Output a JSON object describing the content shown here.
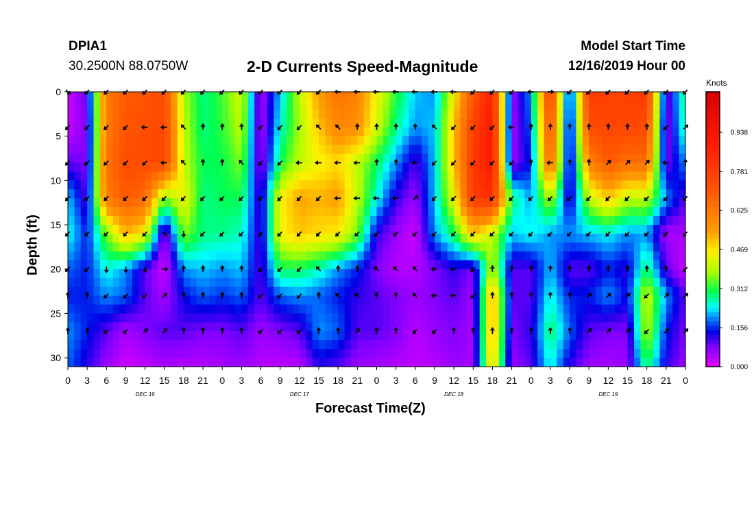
{
  "header": {
    "station": "DPIA1",
    "coords": "30.2500N 88.0750W",
    "title": "2-D Currents Speed-Magnitude",
    "start_label": "Model Start Time",
    "start_value": "12/16/2019 Hour 00"
  },
  "chart_data": {
    "type": "heatmap",
    "title": "2-D Currents Speed-Magnitude",
    "xlabel": "Forecast Time(Z)",
    "ylabel": "Depth (ft)",
    "x_ticks": [
      "0",
      "3",
      "6",
      "9",
      "12",
      "15",
      "18",
      "21",
      "0",
      "3",
      "6",
      "9",
      "12",
      "15",
      "18",
      "21",
      "0",
      "3",
      "6",
      "9",
      "12",
      "15",
      "18",
      "21",
      "0",
      "3",
      "6",
      "9",
      "12",
      "15",
      "18",
      "21",
      "0"
    ],
    "day_labels": [
      "DEC 16",
      "DEC 17",
      "DEC 18",
      "DEC 19"
    ],
    "y_ticks": [
      "0",
      "5",
      "10",
      "15",
      "20",
      "25",
      "30"
    ],
    "ylim": [
      0,
      31
    ],
    "xlim_hours": [
      0,
      96
    ],
    "colorbar": {
      "units": "Knots",
      "ticks": [
        "0.000",
        "0.156",
        "0.312",
        "0.469",
        "0.625",
        "0.781",
        "0.938"
      ],
      "range": [
        0,
        1.1
      ]
    },
    "depths": [
      0,
      4,
      8,
      12,
      16,
      20,
      23,
      27,
      31
    ],
    "hours": [
      0,
      3,
      6,
      9,
      12,
      15,
      18,
      21,
      24,
      27,
      30,
      33,
      36,
      39,
      42,
      45,
      48,
      51,
      54,
      57,
      60,
      63,
      66,
      69,
      72,
      75,
      78,
      81,
      84,
      87,
      90,
      93,
      96
    ],
    "speed_grid": [
      [
        0.02,
        0.1,
        0.62,
        0.7,
        0.72,
        0.74,
        0.38,
        0.28,
        0.33,
        0.42,
        0.04,
        0.22,
        0.4,
        0.55,
        0.65,
        0.6,
        0.45,
        0.32,
        0.22,
        0.2,
        0.45,
        0.72,
        0.88,
        0.06,
        0.2,
        0.8,
        0.1,
        0.8,
        0.78,
        0.78,
        0.8,
        0.08,
        0.3
      ],
      [
        0.02,
        0.08,
        0.62,
        0.72,
        0.74,
        0.76,
        0.4,
        0.28,
        0.32,
        0.4,
        0.04,
        0.25,
        0.38,
        0.5,
        0.6,
        0.58,
        0.42,
        0.28,
        0.2,
        0.22,
        0.5,
        0.78,
        0.9,
        0.05,
        0.18,
        0.74,
        0.08,
        0.74,
        0.76,
        0.76,
        0.74,
        0.06,
        0.28
      ],
      [
        0.1,
        0.08,
        0.64,
        0.74,
        0.74,
        0.76,
        0.4,
        0.3,
        0.3,
        0.36,
        0.05,
        0.3,
        0.4,
        0.45,
        0.48,
        0.4,
        0.3,
        0.2,
        0.1,
        0.22,
        0.5,
        0.8,
        0.9,
        0.06,
        0.15,
        0.68,
        0.08,
        0.6,
        0.7,
        0.65,
        0.65,
        0.08,
        0.2
      ],
      [
        0.22,
        0.1,
        0.62,
        0.7,
        0.66,
        0.35,
        0.45,
        0.28,
        0.3,
        0.3,
        0.1,
        0.45,
        0.54,
        0.52,
        0.55,
        0.4,
        0.25,
        0.12,
        0.06,
        0.22,
        0.44,
        0.8,
        0.82,
        0.3,
        0.2,
        0.4,
        0.1,
        0.4,
        0.5,
        0.4,
        0.4,
        0.2,
        0.1
      ],
      [
        0.25,
        0.15,
        0.35,
        0.52,
        0.45,
        0.05,
        0.36,
        0.28,
        0.28,
        0.26,
        0.1,
        0.45,
        0.5,
        0.48,
        0.46,
        0.35,
        0.12,
        0.06,
        0.02,
        0.2,
        0.3,
        0.5,
        0.4,
        0.22,
        0.25,
        0.2,
        0.2,
        0.22,
        0.24,
        0.2,
        0.2,
        0.05,
        0.05
      ],
      [
        0.18,
        0.15,
        0.25,
        0.2,
        0.1,
        0.02,
        0.2,
        0.22,
        0.2,
        0.22,
        0.1,
        0.3,
        0.3,
        0.26,
        0.2,
        0.15,
        0.08,
        0.04,
        0.04,
        0.08,
        0.12,
        0.08,
        0.4,
        0.1,
        0.1,
        0.22,
        0.1,
        0.1,
        0.15,
        0.12,
        0.3,
        0.1,
        0.02
      ],
      [
        0.15,
        0.15,
        0.2,
        0.18,
        0.1,
        0.05,
        0.14,
        0.18,
        0.16,
        0.18,
        0.1,
        0.18,
        0.2,
        0.18,
        0.15,
        0.12,
        0.1,
        0.08,
        0.06,
        0.08,
        0.1,
        0.06,
        0.55,
        0.1,
        0.1,
        0.25,
        0.15,
        0.15,
        0.2,
        0.14,
        0.42,
        0.2,
        0.1
      ],
      [
        0.2,
        0.15,
        0.1,
        0.05,
        0.08,
        0.1,
        0.1,
        0.08,
        0.08,
        0.1,
        0.06,
        0.08,
        0.1,
        0.2,
        0.18,
        0.1,
        0.1,
        0.08,
        0.04,
        0.06,
        0.08,
        0.05,
        0.55,
        0.08,
        0.12,
        0.3,
        0.18,
        0.1,
        0.08,
        0.08,
        0.4,
        0.15,
        0.08
      ],
      [
        0.18,
        0.12,
        0.06,
        0.02,
        0.03,
        0.05,
        0.04,
        0.04,
        0.05,
        0.06,
        0.04,
        0.03,
        0.04,
        0.12,
        0.1,
        0.06,
        0.05,
        0.04,
        0.03,
        0.04,
        0.06,
        0.05,
        0.5,
        0.06,
        0.1,
        0.25,
        0.12,
        0.06,
        0.05,
        0.06,
        0.3,
        0.12,
        0.06
      ]
    ],
    "arrow_depths": [
      0,
      4,
      8,
      12,
      16,
      20,
      23,
      27
    ],
    "arrow_dirs_deg": [
      [
        135,
        225,
        225,
        225,
        225,
        225,
        225,
        225,
        225,
        225,
        225,
        225,
        225,
        225,
        270,
        270,
        270,
        270,
        270,
        270,
        270,
        225,
        225,
        225,
        270,
        90,
        225,
        225,
        225,
        225,
        225,
        225,
        225
      ],
      [
        225,
        225,
        225,
        225,
        270,
        270,
        315,
        0,
        0,
        0,
        225,
        225,
        225,
        315,
        315,
        0,
        0,
        0,
        0,
        315,
        225,
        225,
        225,
        270,
        0,
        0,
        0,
        0,
        0,
        0,
        0,
        225,
        45
      ],
      [
        225,
        225,
        225,
        225,
        225,
        270,
        315,
        0,
        0,
        315,
        225,
        225,
        270,
        270,
        270,
        270,
        0,
        0,
        270,
        225,
        225,
        225,
        225,
        225,
        0,
        270,
        0,
        0,
        45,
        45,
        45,
        270,
        0
      ],
      [
        225,
        225,
        225,
        225,
        225,
        225,
        225,
        225,
        225,
        225,
        225,
        225,
        225,
        225,
        270,
        270,
        270,
        270,
        45,
        225,
        225,
        225,
        225,
        225,
        225,
        225,
        225,
        225,
        225,
        225,
        225,
        225,
        225
      ],
      [
        225,
        225,
        225,
        225,
        225,
        135,
        180,
        225,
        225,
        225,
        225,
        225,
        225,
        225,
        225,
        225,
        225,
        225,
        225,
        225,
        225,
        225,
        225,
        225,
        225,
        225,
        225,
        225,
        225,
        225,
        225,
        225,
        225
      ],
      [
        225,
        225,
        180,
        180,
        180,
        90,
        0,
        0,
        0,
        0,
        225,
        225,
        225,
        315,
        0,
        0,
        315,
        315,
        315,
        270,
        270,
        225,
        0,
        0,
        0,
        0,
        0,
        0,
        0,
        0,
        0,
        0,
        225
      ],
      [
        0,
        0,
        225,
        225,
        225,
        45,
        0,
        0,
        0,
        0,
        225,
        225,
        225,
        0,
        315,
        315,
        0,
        0,
        315,
        270,
        270,
        225,
        0,
        0,
        0,
        0,
        0,
        45,
        45,
        45,
        225,
        45,
        45
      ],
      [
        0,
        0,
        225,
        225,
        45,
        45,
        0,
        0,
        0,
        0,
        225,
        225,
        225,
        0,
        0,
        45,
        0,
        0,
        225,
        225,
        0,
        0,
        0,
        0,
        0,
        0,
        0,
        45,
        45,
        45,
        225,
        45,
        45
      ]
    ]
  }
}
